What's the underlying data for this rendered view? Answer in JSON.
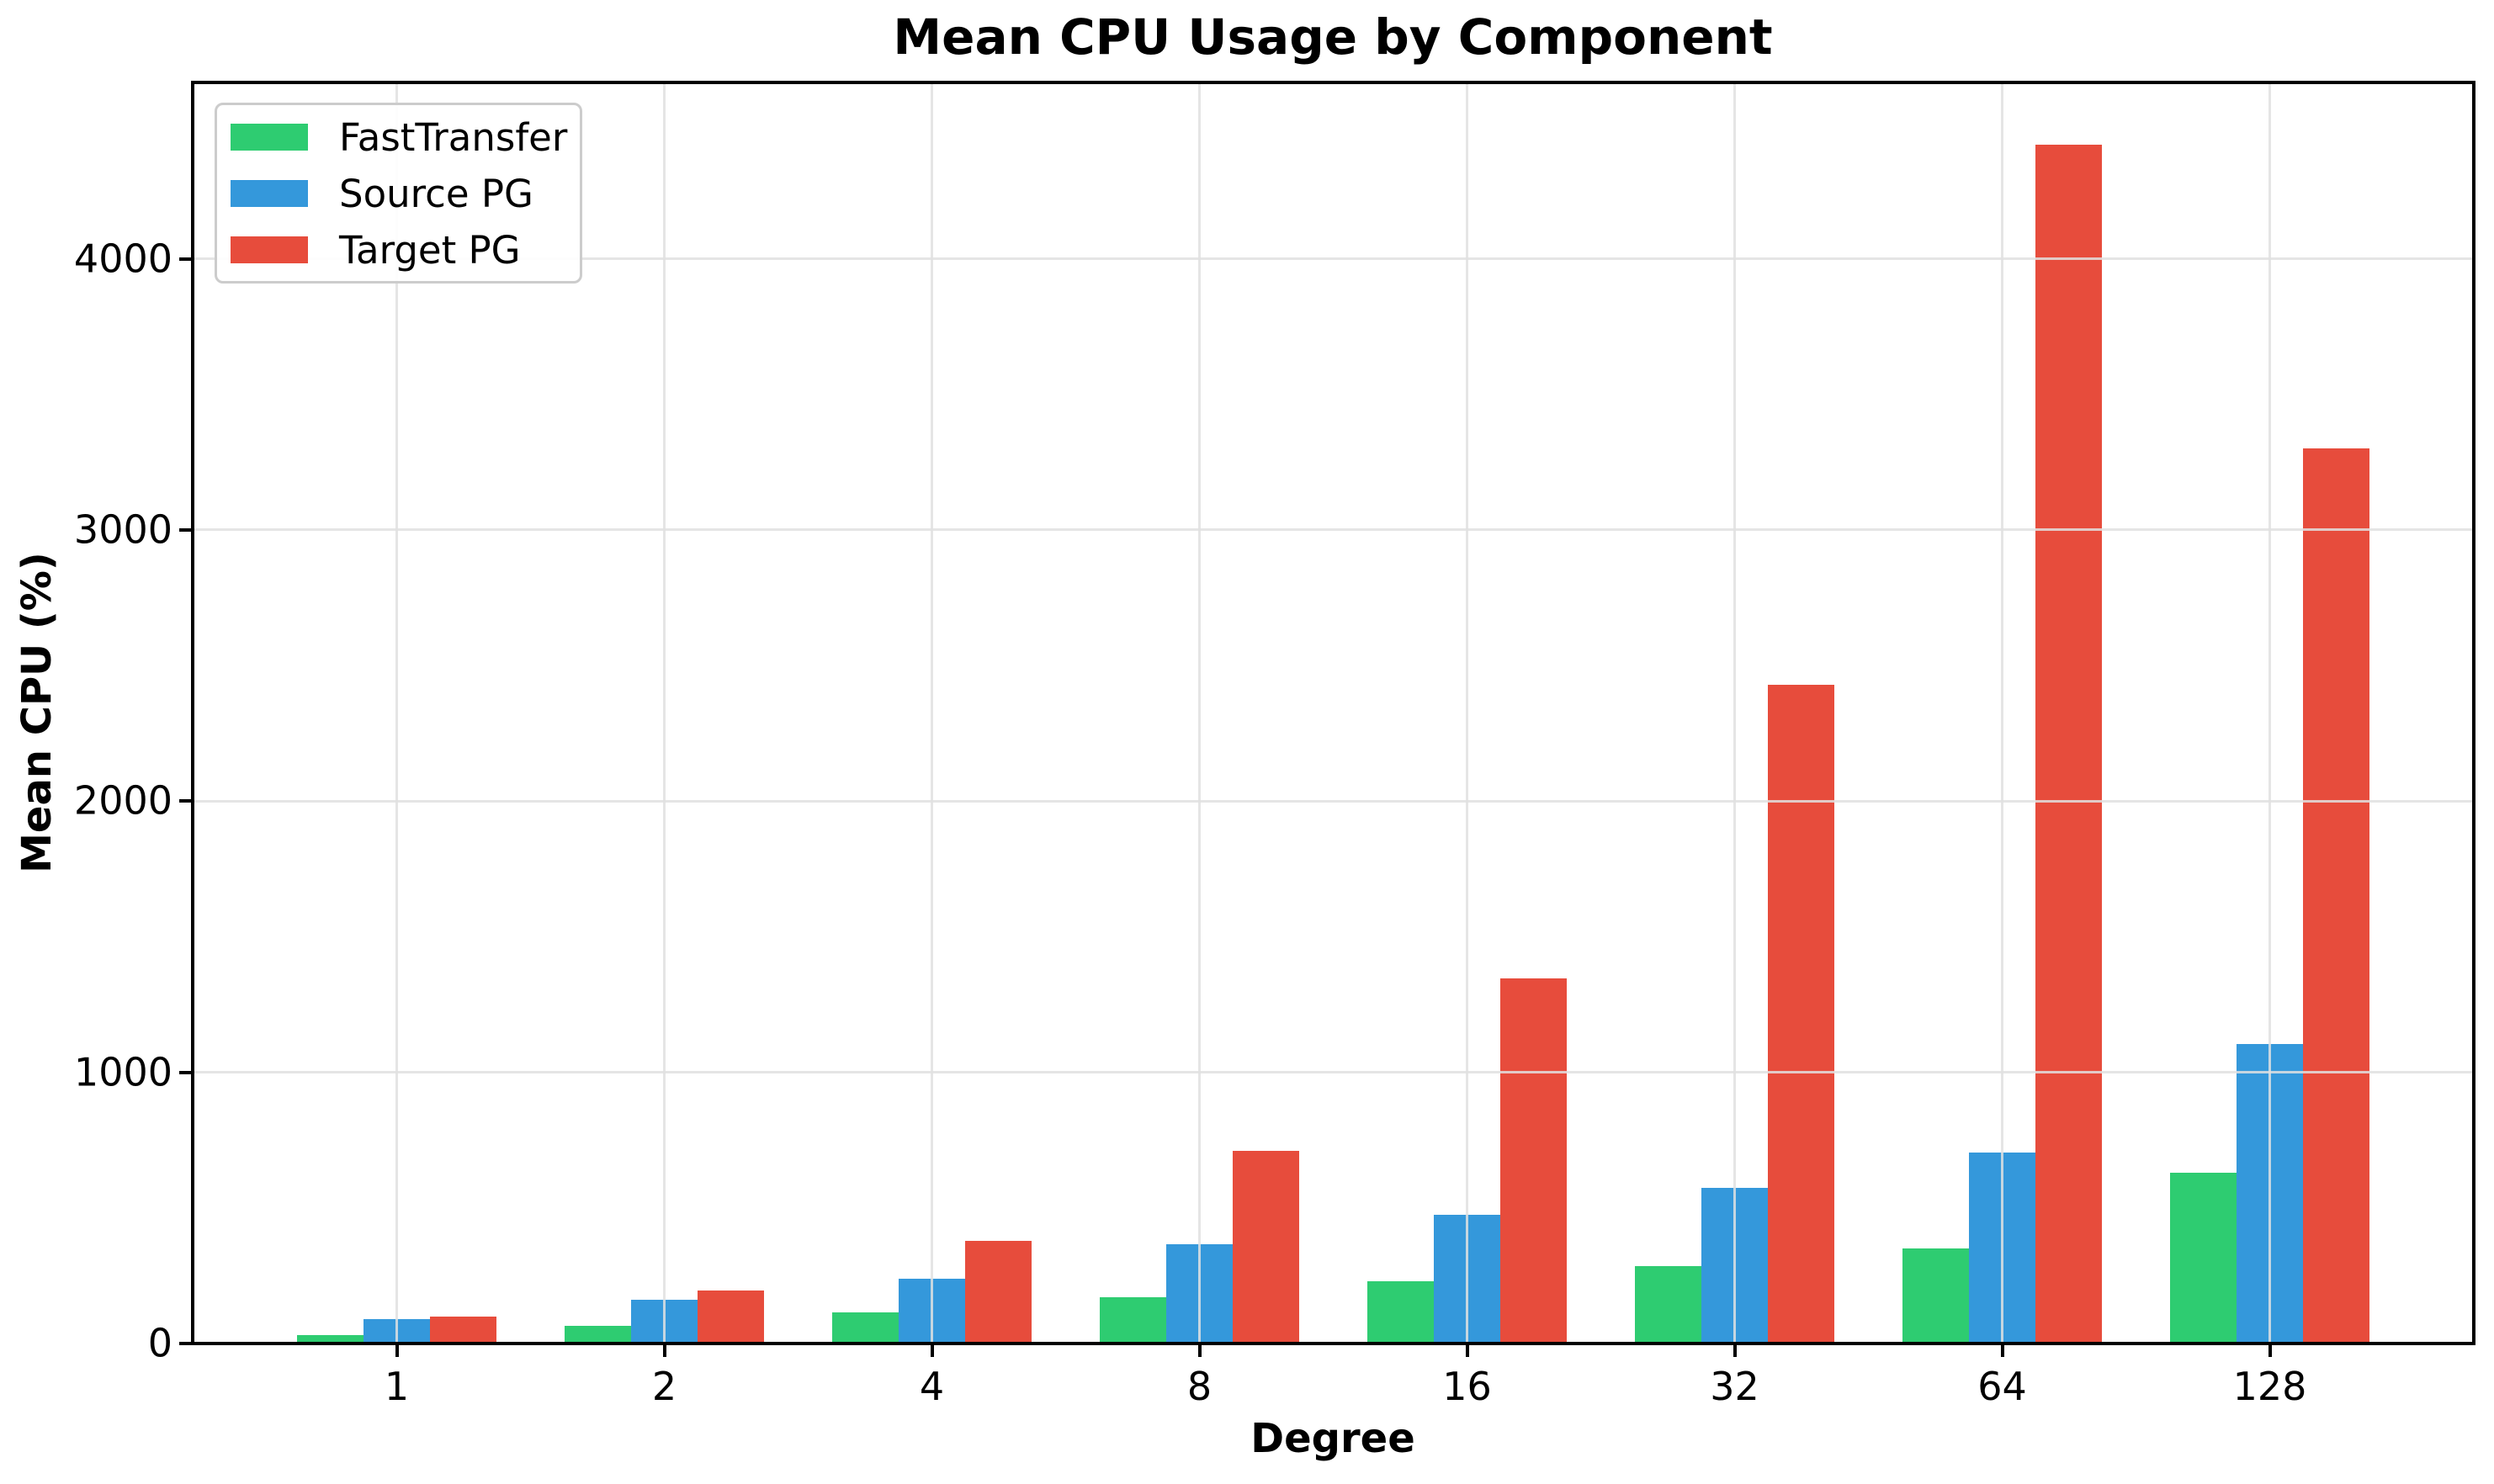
{
  "chart_data": {
    "type": "bar",
    "title": "Mean CPU Usage by Component",
    "xlabel": "Degree",
    "ylabel": "Mean CPU (%)",
    "categories": [
      "1",
      "2",
      "4",
      "8",
      "16",
      "32",
      "64",
      "128"
    ],
    "series": [
      {
        "name": "FastTransfer",
        "color": "#2ecc71",
        "values": [
          30,
          65,
          115,
          170,
          230,
          285,
          350,
          630
        ]
      },
      {
        "name": "Source PG",
        "color": "#3498db",
        "values": [
          90,
          160,
          240,
          365,
          475,
          575,
          705,
          1105
        ]
      },
      {
        "name": "Target PG",
        "color": "#e74c3c",
        "values": [
          100,
          195,
          380,
          710,
          1345,
          2430,
          4420,
          3300
        ]
      }
    ],
    "yticks": [
      0,
      1000,
      2000,
      3000,
      4000
    ],
    "ylim": [
      0,
      4650
    ],
    "grid": true,
    "legend_position": "upper left",
    "colors": {
      "background": "#ffffff",
      "gridline": "#e8e8e8",
      "spine": "#000000",
      "text": "#000000",
      "legend_border": "#cccccc"
    }
  }
}
